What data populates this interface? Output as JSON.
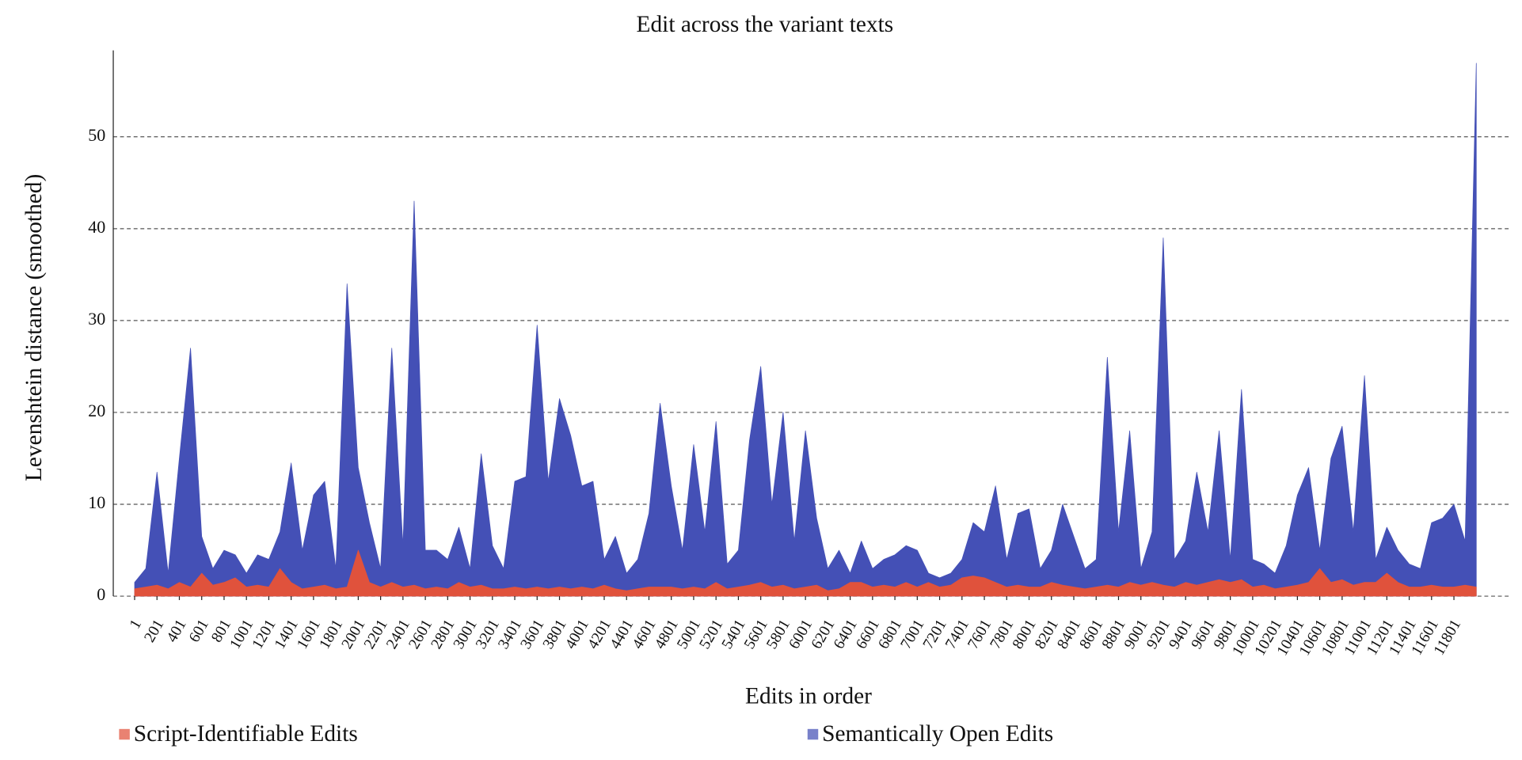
{
  "chart_data": {
    "type": "area",
    "title": "Edit across the variant texts",
    "x_label": "Edits in order",
    "y_label": "Levenshtein distance (smoothed)",
    "x": [
      1,
      101,
      201,
      301,
      401,
      501,
      601,
      701,
      801,
      901,
      1001,
      1101,
      1201,
      1301,
      1401,
      1501,
      1601,
      1701,
      1801,
      1901,
      2001,
      2101,
      2201,
      2301,
      2401,
      2501,
      2601,
      2701,
      2801,
      2901,
      3001,
      3101,
      3201,
      3301,
      3401,
      3501,
      3601,
      3701,
      3801,
      3901,
      4001,
      4101,
      4201,
      4301,
      4401,
      4501,
      4601,
      4701,
      4801,
      4901,
      5001,
      5101,
      5201,
      5301,
      5401,
      5501,
      5601,
      5701,
      5801,
      5901,
      6001,
      6101,
      6201,
      6301,
      6401,
      6501,
      6601,
      6701,
      6801,
      6901,
      7001,
      7101,
      7201,
      7301,
      7401,
      7501,
      7601,
      7701,
      7801,
      7901,
      8001,
      8101,
      8201,
      8301,
      8401,
      8501,
      8601,
      8701,
      8801,
      8901,
      9001,
      9101,
      9201,
      9301,
      9401,
      9501,
      9601,
      9701,
      9801,
      9901,
      10001,
      10101,
      10201,
      10301,
      10401,
      10501,
      10601,
      10701,
      10801,
      10901,
      11001,
      11101,
      11201,
      11301,
      11401,
      11501,
      11601,
      11701,
      11801,
      11901,
      12001
    ],
    "series": [
      {
        "name": "Semantically Open Edits",
        "color": "#4450b6",
        "values": [
          1.5,
          3,
          13.5,
          2.5,
          15,
          27,
          6.5,
          3,
          5,
          4.5,
          2.5,
          4.5,
          4,
          7,
          14.5,
          5,
          11,
          12.5,
          3,
          34,
          14,
          8,
          3,
          27,
          5.5,
          43,
          5,
          5,
          4,
          7.5,
          3,
          15.5,
          5.5,
          3,
          12.5,
          13,
          29.5,
          12.5,
          21.5,
          17.5,
          12,
          12.5,
          4,
          6.5,
          2.5,
          4,
          9,
          21,
          12,
          5,
          16.5,
          7,
          19,
          3.5,
          5,
          17,
          25,
          10,
          20,
          6,
          18,
          8.5,
          3,
          5,
          2.5,
          6,
          3,
          4,
          4.5,
          5.5,
          5,
          2.5,
          2,
          2.5,
          4,
          8,
          7,
          12,
          4,
          9,
          9.5,
          3,
          5,
          10,
          6.5,
          3,
          4,
          26,
          7,
          18,
          3,
          7,
          39,
          4,
          6,
          13.5,
          7,
          18,
          4,
          22.5,
          4,
          3.5,
          2.5,
          5.5,
          11,
          14,
          5,
          15,
          18.5,
          7,
          24,
          4,
          7.5,
          5,
          3.5,
          3,
          8,
          8.5,
          10,
          6,
          58
        ]
      },
      {
        "name": "Script-Identifiable Edits",
        "color": "#e0523c",
        "values": [
          0.8,
          1,
          1.2,
          0.8,
          1.5,
          1,
          2.5,
          1.2,
          1.5,
          2,
          1,
          1.2,
          1,
          3,
          1.5,
          0.8,
          1,
          1.2,
          0.8,
          1,
          5,
          1.5,
          1,
          1.5,
          1,
          1.2,
          0.8,
          1,
          0.8,
          1.5,
          1,
          1.2,
          0.8,
          0.8,
          1,
          0.8,
          1,
          0.8,
          1,
          0.8,
          1,
          0.8,
          1.2,
          0.8,
          0.6,
          0.8,
          1,
          1,
          1,
          0.8,
          1,
          0.8,
          1.5,
          0.8,
          1,
          1.2,
          1.5,
          1,
          1.2,
          0.8,
          1,
          1.2,
          0.6,
          0.8,
          1.5,
          1.5,
          1,
          1.2,
          1,
          1.5,
          1,
          1.5,
          1,
          1.2,
          2,
          2.2,
          2,
          1.5,
          1,
          1.2,
          1,
          1,
          1.5,
          1.2,
          1,
          0.8,
          1,
          1.2,
          1,
          1.5,
          1.2,
          1.5,
          1.2,
          1,
          1.5,
          1.2,
          1.5,
          1.8,
          1.5,
          1.8,
          1,
          1.2,
          0.8,
          1,
          1.2,
          1.5,
          3,
          1.5,
          1.8,
          1.2,
          1.5,
          1.5,
          2.5,
          1.5,
          1,
          1,
          1.2,
          1,
          1,
          1.2,
          1
        ]
      }
    ],
    "xlim": [
      -190,
      12290
    ],
    "ylim": [
      0,
      59.4
    ],
    "xticks": [
      1,
      201,
      401,
      601,
      801,
      1001,
      1201,
      1401,
      1601,
      1801,
      2001,
      2201,
      2401,
      2601,
      2801,
      3001,
      3201,
      3401,
      3601,
      3801,
      4001,
      4201,
      4401,
      4601,
      4801,
      5001,
      5201,
      5401,
      5601,
      5801,
      6001,
      6201,
      6401,
      6601,
      6801,
      7001,
      7201,
      7401,
      7601,
      7801,
      8001,
      8201,
      8401,
      8601,
      8801,
      9001,
      9201,
      9401,
      9601,
      9801,
      10001,
      10201,
      10401,
      10601,
      10801,
      11001,
      11201,
      11401,
      11601,
      11801
    ],
    "yticks": [
      0,
      10,
      20,
      30,
      40,
      50
    ],
    "grid": true
  }
}
